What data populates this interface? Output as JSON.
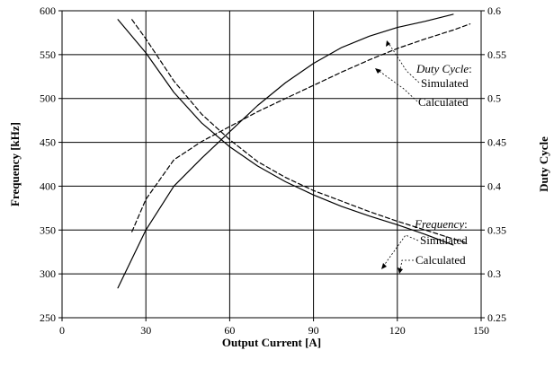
{
  "chart_data": {
    "type": "line",
    "xlabel": "Output Current [A]",
    "ylabel_left": "Frequency [kHz]",
    "ylabel_right": "Duty Cycle",
    "xlim": [
      0,
      150
    ],
    "ylim_left": [
      250,
      600
    ],
    "ylim_right": [
      0.25,
      0.6
    ],
    "x_ticks": [
      "0",
      "30",
      "60",
      "90",
      "120",
      "150"
    ],
    "y_left_ticks": [
      "250",
      "300",
      "350",
      "400",
      "450",
      "500",
      "550",
      "600"
    ],
    "y_right_ticks": [
      "0.25",
      "0.3",
      "0.35",
      "0.4",
      "0.45",
      "0.5",
      "0.55",
      "0.6"
    ],
    "grid": true,
    "series": [
      {
        "axis": "left",
        "style": "solid",
        "x": [
          20,
          30,
          40,
          50,
          60,
          70,
          80,
          90,
          100,
          110,
          120,
          130,
          140
        ],
        "y": [
          590,
          552,
          507,
          472,
          445,
          423,
          405,
          390,
          377,
          366,
          356,
          345,
          333
        ]
      },
      {
        "axis": "left",
        "style": "dashed",
        "x": [
          25,
          30,
          40,
          50,
          60,
          70,
          80,
          90,
          100,
          110,
          120,
          130,
          140,
          145
        ],
        "y": [
          590,
          568,
          520,
          482,
          453,
          428,
          410,
          395,
          383,
          371,
          360,
          350,
          340,
          335
        ]
      },
      {
        "axis": "right",
        "style": "solid",
        "x": [
          20,
          30,
          40,
          50,
          60,
          70,
          80,
          90,
          100,
          110,
          120,
          130,
          140
        ],
        "y": [
          0.284,
          0.35,
          0.4,
          0.432,
          0.462,
          0.492,
          0.518,
          0.54,
          0.558,
          0.571,
          0.581,
          0.588,
          0.596
        ]
      },
      {
        "axis": "right",
        "style": "dashed",
        "x": [
          25,
          30,
          40,
          50,
          60,
          70,
          80,
          90,
          100,
          110,
          120,
          130,
          140,
          146
        ],
        "y": [
          0.348,
          0.385,
          0.43,
          0.451,
          0.468,
          0.485,
          0.5,
          0.515,
          0.53,
          0.544,
          0.557,
          0.568,
          0.578,
          0.585
        ]
      }
    ],
    "annotations": {
      "duty_cycle": {
        "label": "Duty Cycle",
        "suffix": ":",
        "simulated": "Simulated",
        "calculated": "Calculated"
      },
      "frequency": {
        "label": "Frequency",
        "suffix": ":",
        "simulated": "Simulated",
        "calculated": "Calculated"
      }
    }
  }
}
